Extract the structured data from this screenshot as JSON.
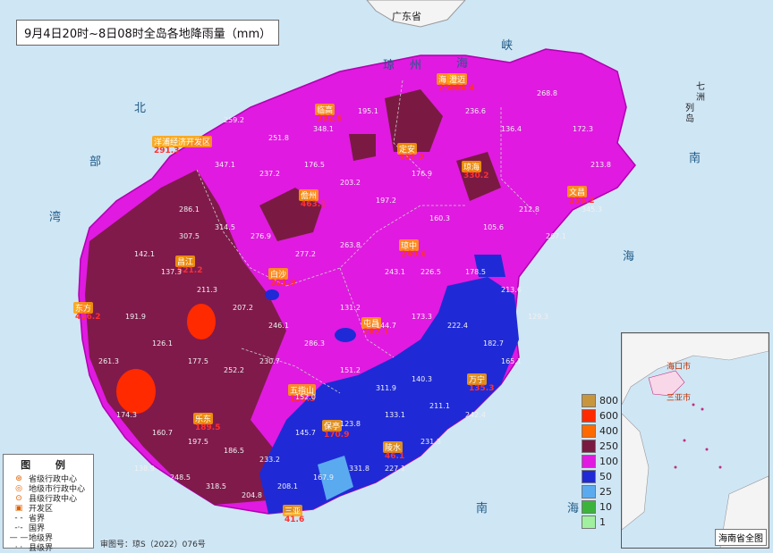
{
  "title": "9月4日20时~8日08时全岛各地降雨量（mm）",
  "neighbor_province": "广东省",
  "sea_labels": [
    "琼",
    "州",
    "海",
    "峡",
    "北",
    "部",
    "湾",
    "南",
    "海",
    "南",
    "海",
    "七",
    "洲",
    "列",
    "岛"
  ],
  "legend": {
    "title": "图 例",
    "items": [
      "省级行政中心",
      "地级市行政中心",
      "县级行政中心",
      "开发区",
      "省界",
      "国界",
      "地级界",
      "县级界"
    ]
  },
  "scale": {
    "labels": [
      "800",
      "600",
      "400",
      "250",
      "100",
      "50",
      "25",
      "10",
      "1"
    ],
    "colors": [
      "#c8963c",
      "#ff2a00",
      "#ff6a00",
      "#7a1a42",
      "#e01ae0",
      "#1f2ad6",
      "#5aaaf0",
      "#3cb43c",
      "#a0f0a0"
    ]
  },
  "approval_no": "审图号：琼S（2022）076号",
  "inset_caption": "海南省全图",
  "inset_labels": [
    "海口市",
    "三亚市"
  ],
  "place_labels": [
    {
      "name": "海口",
      "value": "250.9"
    },
    {
      "name": "文昌",
      "value": "256.2"
    },
    {
      "name": "琼海",
      "value": "330.2"
    },
    {
      "name": "万宁",
      "value": "135.3"
    },
    {
      "name": "陵水",
      "value": "46.1"
    },
    {
      "name": "三亚",
      "value": "41.6"
    },
    {
      "name": "乐东",
      "value": "189.5"
    },
    {
      "name": "东方",
      "value": "416.2"
    },
    {
      "name": "昌江",
      "value": "521.2"
    },
    {
      "name": "儋州",
      "value": "463.1"
    },
    {
      "name": "临高",
      "value": "382.6"
    },
    {
      "name": "澄迈",
      "value": "384.4"
    },
    {
      "name": "定安",
      "value": "301.2"
    },
    {
      "name": "屯昌",
      "value": "282.1"
    },
    {
      "name": "白沙",
      "value": "321.9"
    },
    {
      "name": "琼中",
      "value": "240.6"
    },
    {
      "name": "五指山",
      "value": "155.3"
    },
    {
      "name": "保亭",
      "value": "170.9"
    },
    {
      "name": "洋浦经济开发区",
      "value": "291.3"
    }
  ],
  "stations": [
    "259.2",
    "251.8",
    "348.1",
    "195.1",
    "176.9",
    "236.6",
    "136.4",
    "268.8",
    "172.3",
    "213.8",
    "347.1",
    "237.2",
    "176.5",
    "203.2",
    "197.2",
    "160.3",
    "105.6",
    "212.8",
    "267.1",
    "345.3",
    "286.1",
    "314.5",
    "276.9",
    "277.2",
    "263.8",
    "243.1",
    "226.5",
    "178.5",
    "213.6",
    "129.3",
    "142.1",
    "137.3",
    "211.3",
    "207.2",
    "246.1",
    "286.3",
    "131.2",
    "144.7",
    "173.3",
    "222.4",
    "191.9",
    "126.1",
    "177.5",
    "252.2",
    "230.7",
    "152.0",
    "151.2",
    "311.9",
    "140.3",
    "182.7",
    "261.3",
    "174.3",
    "160.7",
    "197.5",
    "186.5",
    "233.2",
    "145.7",
    "123.8",
    "133.1",
    "211.1",
    "138.9",
    "248.5",
    "318.5",
    "204.8",
    "208.1",
    "167.9",
    "331.8",
    "227.1",
    "231.3",
    "307.5",
    "242.4",
    "165.1"
  ],
  "colors": {
    "sea": "#cfe6f5",
    "magenta": "#e01ae0",
    "maroon": "#7a1a42",
    "blue": "#1f2ad6",
    "lightblue": "#5aaaf0",
    "red": "#ff2a00",
    "label": "#ff2a00"
  }
}
